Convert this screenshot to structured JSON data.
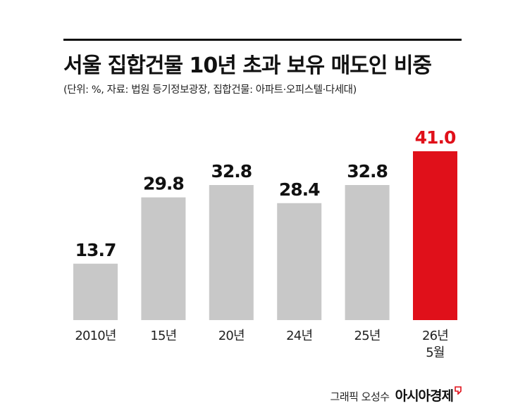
{
  "header": {
    "title": "서울 집합건물 10년 초과 보유 매도인 비중",
    "subtitle": "(단위: %, 자료: 법원 등기정보광장, 집합건물: 아파트·오피스텔·다세대)"
  },
  "footer": {
    "credit": "그래픽 오성수",
    "logo": "아시아경제"
  },
  "colors": {
    "bar_default": "#c8c8c8",
    "bar_highlight": "#e0101a",
    "label_default": "#111111",
    "label_highlight": "#e0101a",
    "rule": "#111111"
  },
  "chart_data": {
    "type": "bar",
    "title": "서울 집합건물 10년 초과 보유 매도인 비중",
    "unit": "%",
    "categories": [
      "2010년",
      "15년",
      "20년",
      "24년",
      "25년",
      "26년 5월"
    ],
    "category_lines": [
      [
        "2010년"
      ],
      [
        "15년"
      ],
      [
        "20년"
      ],
      [
        "24년"
      ],
      [
        "25년"
      ],
      [
        "26년",
        "5월"
      ]
    ],
    "values": [
      13.7,
      29.8,
      32.8,
      28.4,
      32.8,
      41.0
    ],
    "value_labels": [
      "13.7",
      "29.8",
      "32.8",
      "28.4",
      "32.8",
      "41.0"
    ],
    "highlight_index": 5,
    "ylim": [
      0,
      41
    ],
    "grid": false,
    "legend": "none"
  }
}
